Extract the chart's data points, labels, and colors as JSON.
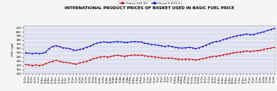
{
  "title": "INTERNATIONAL PRODUCT PRICES OF BASKET USED IN BASIC FUEL PRICE",
  "ylabel": "US$ c/gal",
  "legend_petrol": "Petrol (ULP 95)",
  "legend_diesel": "Diesel 0.05% S",
  "petrol_color": "#cc0000",
  "diesel_color": "#0000cc",
  "background_color": "#dde0ee",
  "fig_facecolor": "#f5f5f5",
  "ylim_min": 100,
  "ylim_max": 215,
  "yticks": [
    100,
    110,
    120,
    130,
    140,
    150,
    160,
    170,
    180,
    190,
    200,
    210
  ],
  "x_labels": [
    "02-Oct",
    "09-Oct",
    "16-Oct",
    "23-Oct",
    "30-Oct",
    "06-Nov",
    "13-Nov",
    "20-Nov",
    "27-Nov",
    "04-Dec",
    "11-Dec",
    "18-Dec",
    "25-Dec",
    "01-Jan",
    "08-Jan",
    "15-Jan",
    "22-Jan",
    "29-Jan",
    "05-Feb",
    "12-Feb",
    "19-Feb",
    "26-Feb",
    "05-Mar",
    "12-Mar",
    "19-Mar",
    "26-Mar",
    "02-Apr",
    "09-Apr",
    "16-Apr",
    "23-Apr",
    "30-Apr",
    "07-May",
    "14-May",
    "21-May",
    "28-May",
    "04-Jun",
    "11-Jun",
    "18-Jun",
    "25-Jun",
    "02-Jul",
    "09-Jul",
    "16-Jul",
    "23-Jul",
    "30-Jul",
    "06-Aug",
    "13-Aug",
    "20-Aug",
    "27-Aug",
    "03-Sep",
    "10-Sep",
    "17-Sep",
    "24-Sep",
    "01-Oct",
    "08-Oct",
    "15-Oct",
    "22-Oct",
    "29-Oct",
    "05-Nov",
    "12-Nov",
    "19-Nov",
    "26-Nov",
    "03-Dec",
    "10-Dec",
    "17-Dec",
    "24-Dec",
    "31-Dec",
    "07-Jan",
    "14-Jan",
    "21-Jan",
    "28-Jan",
    "04-Feb",
    "11-Feb",
    "18-Feb",
    "25-Feb"
  ],
  "petrol_values": [
    122,
    121,
    120,
    121,
    120,
    121,
    124,
    127,
    130,
    132,
    130,
    128,
    127,
    126,
    124,
    123,
    126,
    128,
    130,
    133,
    136,
    138,
    140,
    141,
    140,
    141,
    143,
    144,
    143,
    142,
    143,
    144,
    145,
    144,
    145,
    143,
    142,
    141,
    140,
    139,
    138,
    137,
    138,
    137,
    136,
    135,
    134,
    135,
    135,
    134,
    133,
    134,
    136,
    138,
    140,
    141,
    142,
    143,
    145,
    147,
    148,
    150,
    151,
    152,
    153,
    154,
    153,
    154,
    155,
    156,
    158,
    160,
    161,
    163
  ],
  "diesel_values": [
    150,
    149,
    148,
    149,
    148,
    149,
    152,
    160,
    165,
    167,
    165,
    162,
    161,
    160,
    157,
    156,
    158,
    160,
    163,
    166,
    170,
    173,
    175,
    176,
    175,
    175,
    176,
    177,
    176,
    175,
    175,
    176,
    177,
    176,
    176,
    173,
    172,
    170,
    169,
    168,
    167,
    165,
    167,
    165,
    163,
    162,
    161,
    162,
    163,
    162,
    160,
    162,
    165,
    168,
    172,
    175,
    177,
    178,
    181,
    184,
    186,
    188,
    190,
    192,
    193,
    195,
    193,
    194,
    196,
    198,
    200,
    203,
    205,
    208
  ]
}
